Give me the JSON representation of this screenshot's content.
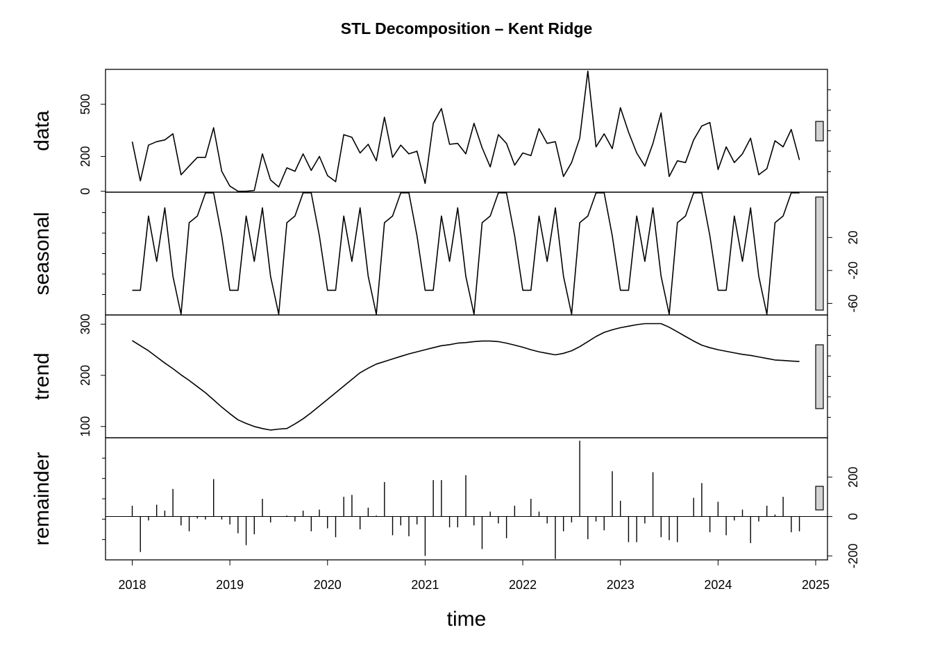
{
  "title": "STL Decomposition – Kent Ridge",
  "xlabel": "time",
  "chart_data": {
    "type": "line",
    "title": "STL Decomposition – Kent Ridge",
    "xlabel": "time",
    "start": 2018,
    "frequency": 12,
    "x_ticks": [
      "2018",
      "2019",
      "2020",
      "2021",
      "2022",
      "2023",
      "2024",
      "2025"
    ],
    "panels": [
      {
        "name": "data",
        "style": "line",
        "ylim": [
          -5,
          700
        ],
        "ticks": [
          0,
          200,
          500
        ],
        "tick_side": "left",
        "values": [
          285,
          60,
          265,
          285,
          295,
          330,
          95,
          145,
          195,
          195,
          365,
          115,
          30,
          0,
          0,
          5,
          215,
          65,
          25,
          135,
          115,
          215,
          120,
          200,
          90,
          55,
          325,
          310,
          220,
          270,
          175,
          425,
          195,
          265,
          215,
          230,
          45,
          390,
          475,
          270,
          275,
          215,
          390,
          250,
          140,
          325,
          275,
          150,
          220,
          205,
          360,
          275,
          285,
          85,
          165,
          305,
          690,
          255,
          330,
          245,
          480,
          340,
          220,
          145,
          275,
          450,
          85,
          175,
          165,
          295,
          375,
          395,
          125,
          255,
          165,
          215,
          305,
          95,
          130,
          290,
          255,
          355,
          180
        ]
      },
      {
        "name": "seasonal",
        "style": "line",
        "ylim": [
          -74,
          75
        ],
        "ticks": [
          -60,
          -20,
          20
        ],
        "tick_side": "right",
        "values": [
          -44,
          -44,
          46,
          -9,
          56,
          -27,
          -79,
          38,
          46,
          82,
          78,
          22,
          -44,
          -44,
          46,
          -9,
          56,
          -27,
          -79,
          38,
          46,
          82,
          78,
          22,
          -44,
          -44,
          46,
          -9,
          56,
          -27,
          -79,
          38,
          46,
          82,
          78,
          22,
          -44,
          -44,
          46,
          -9,
          56,
          -27,
          -79,
          38,
          46,
          82,
          78,
          22,
          -44,
          -44,
          46,
          -9,
          56,
          -27,
          -79,
          38,
          46,
          82,
          78,
          22,
          -44,
          -44,
          46,
          -9,
          56,
          -27,
          -79,
          38,
          46,
          82,
          78,
          22,
          -44,
          -44,
          46,
          -9,
          56,
          -27,
          -79,
          38,
          46,
          82,
          78
        ]
      },
      {
        "name": "trend",
        "style": "line",
        "ylim": [
          78,
          318
        ],
        "ticks": [
          100,
          200,
          300
        ],
        "tick_side": "left",
        "values": [
          268,
          258,
          248,
          236,
          224,
          213,
          201,
          190,
          178,
          166,
          152,
          138,
          125,
          113,
          106,
          100,
          96,
          93,
          95,
          96,
          105,
          115,
          127,
          140,
          153,
          166,
          179,
          192,
          205,
          214,
          222,
          227,
          232,
          237,
          242,
          246,
          250,
          254,
          258,
          260,
          263,
          264,
          266,
          267,
          267,
          266,
          263,
          259,
          255,
          250,
          246,
          243,
          240,
          243,
          248,
          256,
          266,
          276,
          284,
          289,
          293,
          296,
          299,
          301,
          301,
          301,
          294,
          285,
          276,
          267,
          259,
          254,
          250,
          247,
          244,
          241,
          239,
          236,
          233,
          230,
          229,
          228,
          227
        ]
      },
      {
        "name": "remainder",
        "style": "spike",
        "ylim": [
          -220,
          400
        ],
        "ticks": [
          -200,
          0,
          200
        ],
        "tick_side": "right",
        "values": [
          55,
          -180,
          -20,
          60,
          30,
          140,
          -45,
          -75,
          -10,
          -15,
          190,
          -15,
          -40,
          -85,
          -145,
          -90,
          90,
          -30,
          0,
          5,
          -25,
          30,
          -75,
          35,
          -60,
          -105,
          100,
          110,
          -65,
          45,
          5,
          175,
          -95,
          -45,
          -100,
          -40,
          -200,
          185,
          185,
          -55,
          -55,
          210,
          -45,
          -165,
          25,
          -35,
          -110,
          55,
          0,
          90,
          25,
          -35,
          -215,
          -75,
          -30,
          385,
          -115,
          -25,
          -70,
          230,
          80,
          -130,
          -130,
          -35,
          225,
          -105,
          -120,
          -130,
          0,
          95,
          170,
          -80,
          75,
          -95,
          -20,
          35,
          -135,
          -25,
          55,
          10,
          100,
          -80,
          -75
        ]
      }
    ],
    "scale_bar_span": 158
  }
}
